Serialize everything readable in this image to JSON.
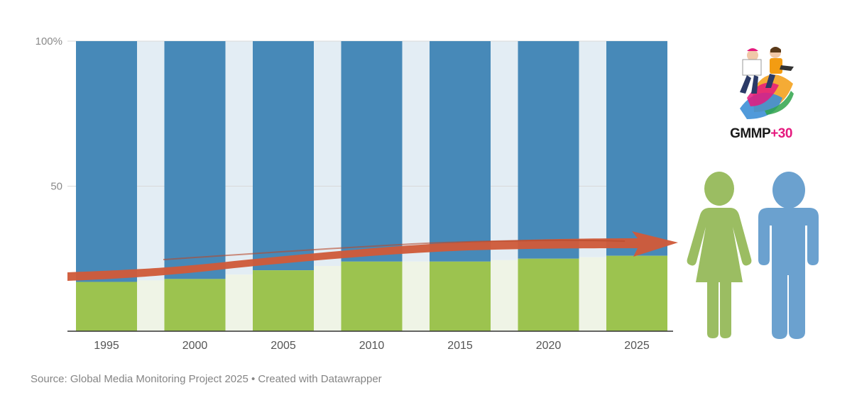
{
  "source": "Source: Global Media Monitoring Project 2025 • Created with Datawrapper",
  "logo": {
    "main": "GMMP",
    "accent": "+30"
  },
  "colors": {
    "men": "#4789b8",
    "women": "#9cc34f",
    "gap_top": "#e3edf4",
    "gap_bottom": "#eff4e6",
    "arrow": "#cf5b3a",
    "woman_icon": "#9bbd62",
    "man_icon": "#6ba1cf",
    "axis_text": "#8a8a8a",
    "tick_text": "#555555",
    "accent": "#e5197e"
  },
  "chart_data": {
    "type": "bar",
    "stacked": true,
    "categories": [
      "1995",
      "2000",
      "2005",
      "2010",
      "2015",
      "2020",
      "2025"
    ],
    "series": [
      {
        "name": "Women",
        "values": [
          17,
          18,
          21,
          24,
          24,
          25,
          26
        ]
      },
      {
        "name": "Men",
        "values": [
          83,
          82,
          79,
          76,
          76,
          75,
          74
        ]
      }
    ],
    "y_ticks": [
      "100%",
      "50"
    ],
    "y_tick_values": [
      100,
      50
    ],
    "ylim": [
      0,
      100
    ],
    "title": "",
    "xlabel": "",
    "ylabel": ""
  }
}
